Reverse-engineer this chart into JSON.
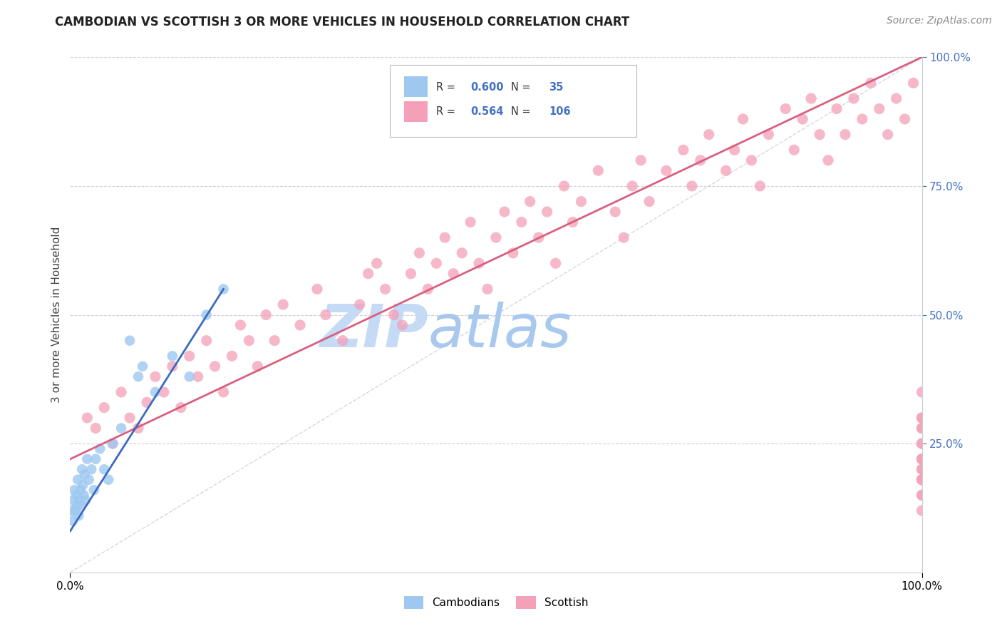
{
  "title": "CAMBODIAN VS SCOTTISH 3 OR MORE VEHICLES IN HOUSEHOLD CORRELATION CHART",
  "source_text": "Source: ZipAtlas.com",
  "ylabel": "3 or more Vehicles in Household",
  "legend_label1": "Cambodians",
  "legend_label2": "Scottish",
  "R1": 0.6,
  "N1": 35,
  "R2": 0.564,
  "N2": 106,
  "color_cambodian": "#9ec8f0",
  "color_scottish": "#f4a0b8",
  "color_trend1": "#3a6bbf",
  "color_trend2": "#d95f7f",
  "watermark_zip_color": "#c5daf5",
  "watermark_atlas_color": "#a8c8ee",
  "background_color": "#ffffff",
  "grid_color": "#d0d0d8",
  "title_color": "#222222",
  "source_color": "#888888",
  "right_axis_color": "#4472c4",
  "cambodian_x": [
    0.2,
    0.3,
    0.4,
    0.5,
    0.6,
    0.7,
    0.8,
    0.9,
    1.0,
    1.1,
    1.2,
    1.3,
    1.4,
    1.5,
    1.6,
    1.7,
    1.8,
    2.0,
    2.2,
    2.5,
    2.8,
    3.0,
    3.5,
    4.0,
    4.5,
    5.0,
    6.0,
    7.0,
    8.0,
    8.5,
    10.0,
    12.0,
    14.0,
    16.0,
    18.0
  ],
  "cambodian_y": [
    12.0,
    10.0,
    14.0,
    16.0,
    12.0,
    15.0,
    13.0,
    18.0,
    11.0,
    14.0,
    16.0,
    13.0,
    20.0,
    17.0,
    15.0,
    19.0,
    14.0,
    22.0,
    18.0,
    20.0,
    16.0,
    22.0,
    24.0,
    20.0,
    18.0,
    25.0,
    28.0,
    45.0,
    38.0,
    40.0,
    35.0,
    42.0,
    38.0,
    50.0,
    55.0
  ],
  "scottish_x": [
    2.0,
    3.0,
    4.0,
    5.0,
    6.0,
    7.0,
    8.0,
    9.0,
    10.0,
    11.0,
    12.0,
    13.0,
    14.0,
    15.0,
    16.0,
    17.0,
    18.0,
    19.0,
    20.0,
    21.0,
    22.0,
    23.0,
    24.0,
    25.0,
    27.0,
    29.0,
    30.0,
    32.0,
    34.0,
    35.0,
    36.0,
    37.0,
    38.0,
    39.0,
    40.0,
    41.0,
    42.0,
    43.0,
    44.0,
    45.0,
    46.0,
    47.0,
    48.0,
    49.0,
    50.0,
    51.0,
    52.0,
    53.0,
    54.0,
    55.0,
    56.0,
    57.0,
    58.0,
    59.0,
    60.0,
    62.0,
    64.0,
    65.0,
    66.0,
    67.0,
    68.0,
    70.0,
    72.0,
    73.0,
    74.0,
    75.0,
    77.0,
    78.0,
    79.0,
    80.0,
    81.0,
    82.0,
    84.0,
    85.0,
    86.0,
    87.0,
    88.0,
    89.0,
    90.0,
    91.0,
    92.0,
    93.0,
    94.0,
    95.0,
    96.0,
    97.0,
    98.0,
    99.0,
    100.0,
    100.0,
    100.0,
    100.0,
    100.0,
    100.0,
    100.0,
    100.0,
    100.0,
    100.0,
    100.0,
    100.0,
    100.0,
    100.0,
    100.0,
    100.0,
    100.0,
    100.0
  ],
  "scottish_y": [
    30.0,
    28.0,
    32.0,
    25.0,
    35.0,
    30.0,
    28.0,
    33.0,
    38.0,
    35.0,
    40.0,
    32.0,
    42.0,
    38.0,
    45.0,
    40.0,
    35.0,
    42.0,
    48.0,
    45.0,
    40.0,
    50.0,
    45.0,
    52.0,
    48.0,
    55.0,
    50.0,
    45.0,
    52.0,
    58.0,
    60.0,
    55.0,
    50.0,
    48.0,
    58.0,
    62.0,
    55.0,
    60.0,
    65.0,
    58.0,
    62.0,
    68.0,
    60.0,
    55.0,
    65.0,
    70.0,
    62.0,
    68.0,
    72.0,
    65.0,
    70.0,
    60.0,
    75.0,
    68.0,
    72.0,
    78.0,
    70.0,
    65.0,
    75.0,
    80.0,
    72.0,
    78.0,
    82.0,
    75.0,
    80.0,
    85.0,
    78.0,
    82.0,
    88.0,
    80.0,
    75.0,
    85.0,
    90.0,
    82.0,
    88.0,
    92.0,
    85.0,
    80.0,
    90.0,
    85.0,
    92.0,
    88.0,
    95.0,
    90.0,
    85.0,
    92.0,
    88.0,
    95.0,
    12.0,
    18.0,
    22.0,
    15.0,
    20.0,
    25.0,
    18.0,
    22.0,
    30.0,
    28.0,
    15.0,
    20.0,
    25.0,
    18.0,
    22.0,
    30.0,
    35.0,
    28.0
  ],
  "trend1_x0": 0.0,
  "trend1_y0": 8.0,
  "trend1_x1": 18.0,
  "trend1_y1": 55.0,
  "trend2_x0": 0.0,
  "trend2_y0": 22.0,
  "trend2_x1": 100.0,
  "trend2_y1": 100.0,
  "diag_color": "#bbbbcc",
  "xlim": [
    0,
    100
  ],
  "ylim": [
    0,
    100
  ]
}
